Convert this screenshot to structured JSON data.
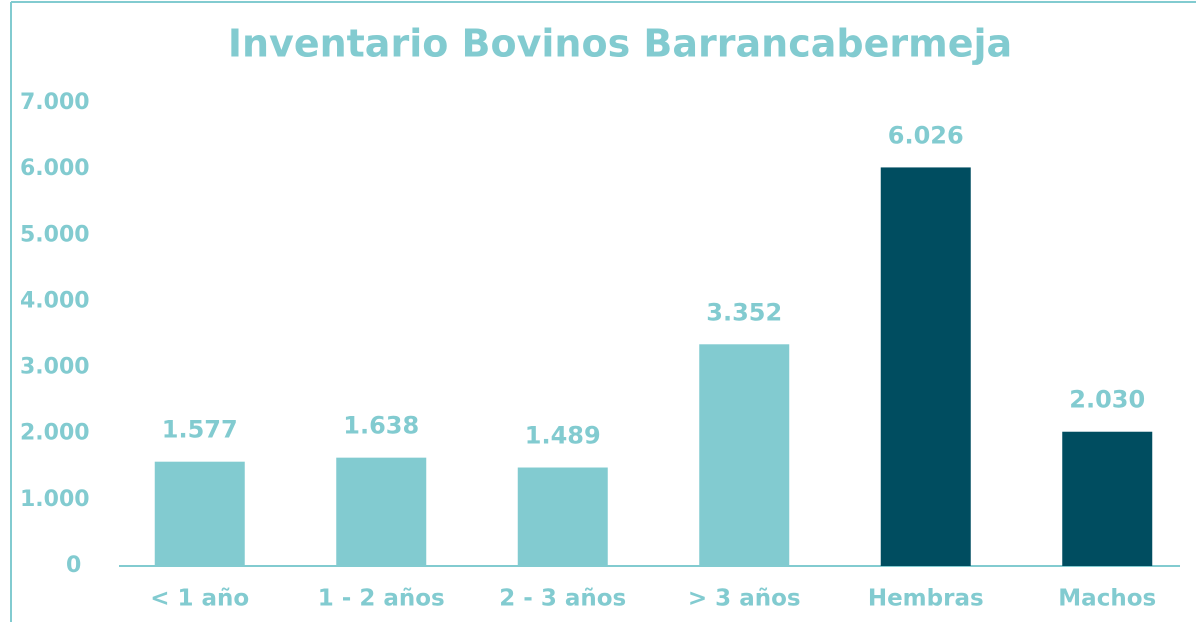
{
  "chart_data": {
    "type": "bar",
    "title": "Inventario Bovinos Barrancabermeja",
    "categories": [
      "< 1 año",
      "1 - 2 años",
      "2 - 3 años",
      "> 3 años",
      "Hembras",
      "Machos"
    ],
    "values": [
      1577,
      1638,
      1489,
      3352,
      6026,
      2030
    ],
    "value_labels": [
      "1.577",
      "1.638",
      "1.489",
      "3.352",
      "6.026",
      "2.030"
    ],
    "colors": [
      "#82cbd0",
      "#82cbd0",
      "#82cbd0",
      "#82cbd0",
      "#004d60",
      "#004d60"
    ],
    "ylim": [
      0,
      7000
    ],
    "yticks": [
      0,
      {
        "value": 1000,
        "label": "1.000"
      },
      {
        "value": 2000,
        "label": "2.000"
      },
      {
        "value": 3000,
        "label": "3.000"
      },
      {
        "value": 4000,
        "label": "4.000"
      },
      {
        "value": 5000,
        "label": "5.000"
      },
      {
        "value": 6000,
        "label": "6.000"
      },
      {
        "value": 7000,
        "label": "7.000"
      }
    ],
    "grid": false
  }
}
